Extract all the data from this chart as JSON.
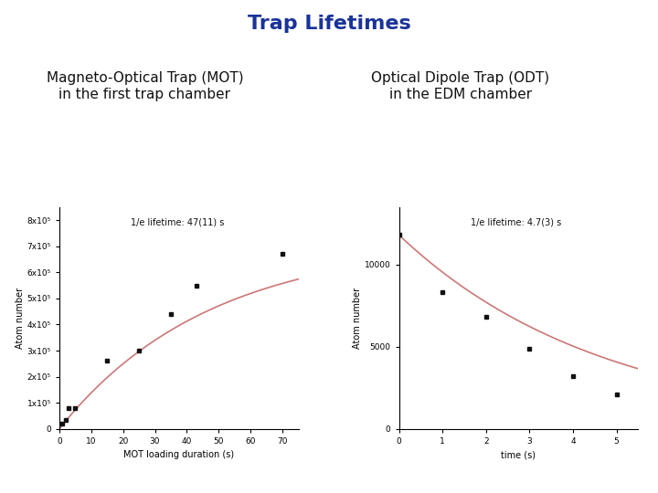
{
  "title": "Trap Lifetimes",
  "title_color": "#1a3399",
  "title_fontsize": 16,
  "title_fontweight": "bold",
  "mot_subtitle_line1": "Magneto-Optical Trap (MOT)",
  "mot_subtitle_line2": "in the first trap chamber",
  "odt_subtitle_line1": "Optical Dipole Trap (ODT)",
  "odt_subtitle_line2": "in the EDM chamber",
  "subtitle_fontsize": 11,
  "mot_x": [
    1,
    2,
    3,
    5,
    15,
    25,
    35,
    43,
    70
  ],
  "mot_y": [
    20000,
    35000,
    80000,
    80000,
    260000,
    300000,
    440000,
    550000,
    670000
  ],
  "mot_fit_tau": 47,
  "mot_fit_N0": 720000,
  "mot_xlabel": "MOT loading duration (s)",
  "mot_ylabel": "Atom number",
  "mot_xlim": [
    0,
    75
  ],
  "mot_ylim": [
    0,
    850000
  ],
  "mot_yticks": [
    0,
    100000,
    200000,
    300000,
    400000,
    500000,
    600000,
    700000,
    800000
  ],
  "mot_ytick_labels": [
    "0",
    "1x10⁵",
    "2x10⁵",
    "3x10⁵",
    "4x10⁵",
    "5x10⁵",
    "6x10⁵",
    "7x10⁵",
    "8x10⁵"
  ],
  "mot_xticks": [
    0,
    10,
    20,
    30,
    40,
    50,
    60,
    70
  ],
  "mot_annotation": "1/e lifetime: 47(11) s",
  "odt_x": [
    0,
    1,
    2,
    3,
    4,
    5
  ],
  "odt_y": [
    11800,
    8300,
    6800,
    4900,
    3200,
    2100
  ],
  "odt_fit_tau": 4.7,
  "odt_fit_N0": 11800,
  "odt_xlabel": "time (s)",
  "odt_ylabel": "Atom number",
  "odt_xlim": [
    0,
    5.5
  ],
  "odt_ylim": [
    0,
    13500
  ],
  "odt_yticks": [
    0,
    5000,
    10000
  ],
  "odt_ytick_labels": [
    "0",
    "5000",
    "10000"
  ],
  "odt_xticks": [
    0,
    1,
    2,
    3,
    4,
    5
  ],
  "odt_annotation": "1/e lifetime: 4.7(3) s",
  "data_color": "#111111",
  "fit_color": "#cc7777",
  "fit_linewidth": 1.2,
  "marker_size": 3,
  "marker_style": "s",
  "annotation_fontsize": 7,
  "axis_label_fontsize": 7,
  "tick_fontsize": 6.5,
  "background_color": "#ffffff"
}
